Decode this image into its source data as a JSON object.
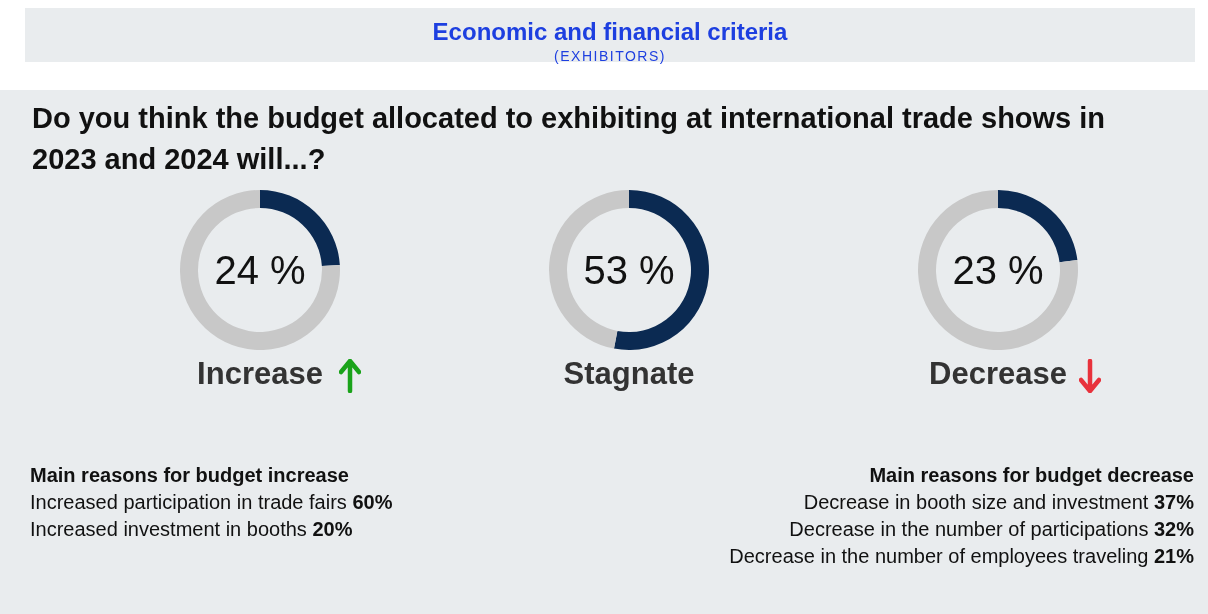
{
  "chart_data": [
    {
      "type": "other",
      "title": "Economic and financial criteria",
      "subtitle": "(EXHIBITORS)",
      "annotations": [
        "Do you think the budget allocated to exhibiting at international trade shows in 2023 and 2024 will...?"
      ]
    },
    {
      "type": "donut",
      "title": "Increase",
      "categories": [
        null,
        null
      ],
      "values": [
        24,
        76
      ],
      "colors": [
        "#0b2a52",
        "#c8c8c8"
      ],
      "annotations": [
        "24 %"
      ]
    },
    {
      "type": "donut",
      "title": "Stagnate",
      "categories": [
        null,
        null
      ],
      "values": [
        53,
        47
      ],
      "colors": [
        "#0b2a52",
        "#c8c8c8"
      ],
      "annotations": [
        "53 %"
      ]
    },
    {
      "type": "donut",
      "title": "Decrease",
      "categories": [
        null,
        null
      ],
      "values": [
        23,
        77
      ],
      "colors": [
        "#0b2a52",
        "#c8c8c8"
      ],
      "annotations": [
        "23 %"
      ]
    },
    {
      "type": "other",
      "title": "Main reasons for budget increase",
      "annotations": [
        "Increased participation in trade fairs 60%",
        "Increased investment in booths 20%"
      ]
    },
    {
      "type": "other",
      "title": "Main reasons for budget decrease",
      "annotations": [
        "Decrease in booth size and investment 37%",
        "Decrease in the number of participations 32%",
        "Decrease in the number of employees traveling 21%"
      ]
    }
  ]
}
